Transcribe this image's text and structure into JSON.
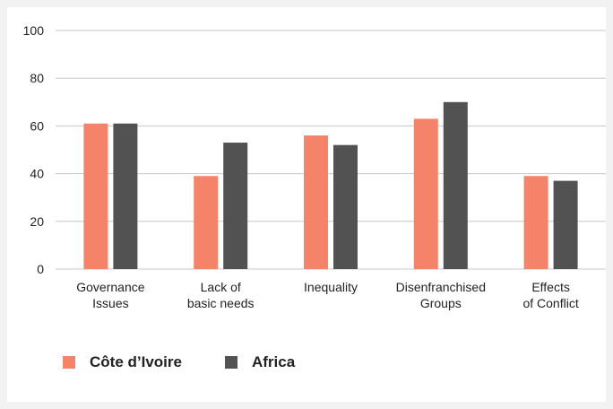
{
  "chart_data": {
    "type": "bar",
    "title": "",
    "xlabel": "",
    "ylabel": "",
    "ylim": [
      0,
      100
    ],
    "yticks": [
      0,
      20,
      40,
      60,
      80,
      100
    ],
    "grid": true,
    "legend_position": "bottom-left",
    "categories": [
      [
        "Governance",
        "Issues"
      ],
      [
        "Lack of",
        "basic needs"
      ],
      [
        "Inequality"
      ],
      [
        "Disenfranchised",
        "Groups"
      ],
      [
        "Effects",
        "of Conflict"
      ]
    ],
    "series": [
      {
        "name": "Côte d’Ivoire",
        "color": "#f4836a",
        "values": [
          61,
          39,
          56,
          63,
          39
        ]
      },
      {
        "name": "Africa",
        "color": "#525252",
        "values": [
          61,
          53,
          52,
          70,
          37
        ]
      }
    ]
  },
  "legend": {
    "items": [
      {
        "label": "Côte d’Ivoire",
        "color": "#f4836a"
      },
      {
        "label": "Africa",
        "color": "#525252"
      }
    ]
  }
}
